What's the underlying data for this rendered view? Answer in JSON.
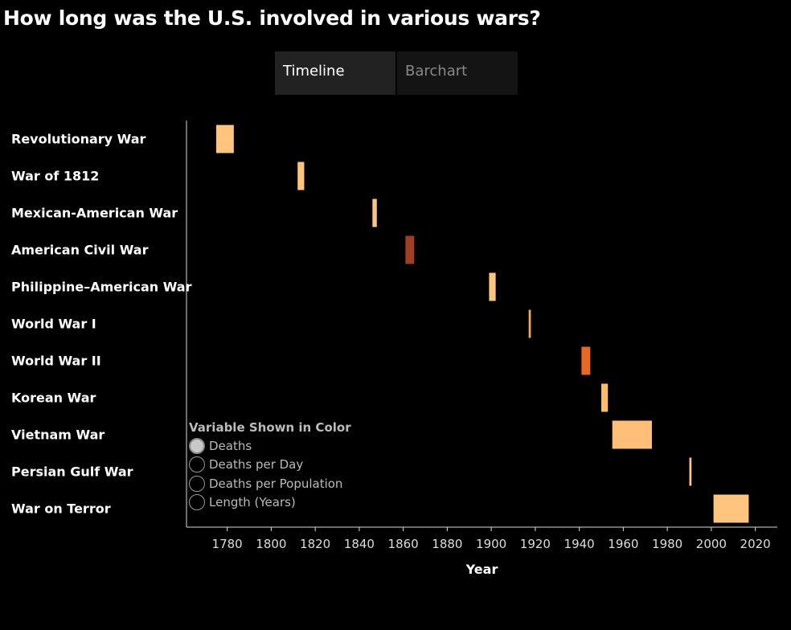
{
  "title": "How long was the U.S. involved in various wars?",
  "tabs": [
    {
      "label": "Timeline",
      "active": true
    },
    {
      "label": "Barchart",
      "active": false
    }
  ],
  "legend": {
    "title": "Variable Shown in Color",
    "options": [
      "Deaths",
      "Deaths per Day",
      "Deaths per Population",
      "Length (Years)"
    ],
    "selected": "Deaths"
  },
  "chart_data": {
    "type": "gantt",
    "xlabel": "Year",
    "xlim": [
      1761.5,
      2030
    ],
    "xticks": [
      1780,
      1800,
      1820,
      1840,
      1860,
      1880,
      1900,
      1920,
      1940,
      1960,
      1980,
      2000,
      2020
    ],
    "grid": false,
    "color_by": "Deaths",
    "rows": [
      {
        "name": "Revolutionary War",
        "start": 1775,
        "end": 1783,
        "color": "#ffc47e"
      },
      {
        "name": "War of 1812",
        "start": 1812,
        "end": 1815,
        "color": "#ffc47e"
      },
      {
        "name": "Mexican-American War",
        "start": 1846,
        "end": 1848,
        "color": "#ffc47e"
      },
      {
        "name": "American Civil War",
        "start": 1861,
        "end": 1865,
        "color": "#a03e24"
      },
      {
        "name": "Philippine–American War",
        "start": 1899,
        "end": 1902,
        "color": "#ffc47e"
      },
      {
        "name": "World War I",
        "start": 1917,
        "end": 1918,
        "color": "#f7a857"
      },
      {
        "name": "World War II",
        "start": 1941,
        "end": 1945,
        "color": "#e8691f"
      },
      {
        "name": "Korean War",
        "start": 1950,
        "end": 1953,
        "color": "#ffbb70"
      },
      {
        "name": "Vietnam War",
        "start": 1955,
        "end": 1973,
        "color": "#ffbf78"
      },
      {
        "name": "Persian Gulf War",
        "start": 1990,
        "end": 1991,
        "color": "#ffc47e"
      },
      {
        "name": "War on Terror",
        "start": 2001,
        "end": 2017,
        "color": "#ffc47e"
      }
    ]
  }
}
